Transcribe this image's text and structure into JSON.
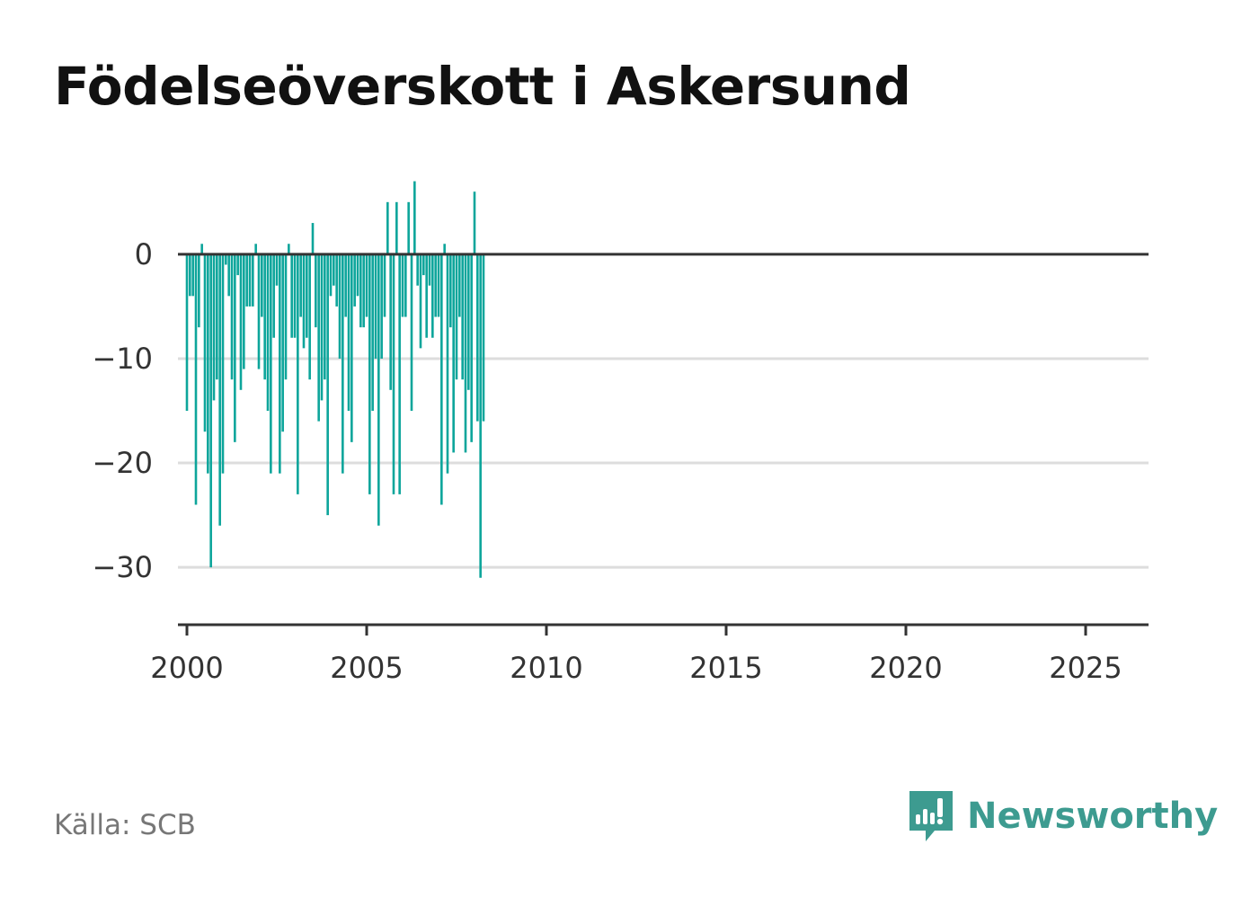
{
  "title": "Födelseöverskott i Askersund",
  "source": "Källa: SCB",
  "brand": {
    "name": "Newsworthy",
    "icon": "newsworthy-logo-icon",
    "color": "#3d9b90"
  },
  "colors": {
    "bar": "#0da59b",
    "zero_line": "#333333",
    "grid": "#dddddd",
    "axis": "#333333"
  },
  "chart_data": {
    "type": "bar",
    "title": "Födelseöverskott i Askersund",
    "xlabel": "",
    "ylabel": "",
    "x_ticks": [
      "2000",
      "2005",
      "2010",
      "2015",
      "2020",
      "2025"
    ],
    "y_ticks": [
      "0",
      "−10",
      "−20",
      "−30"
    ],
    "y_tick_values": [
      0,
      -10,
      -20,
      -30
    ],
    "xlim": [
      1999.75,
      2026.75
    ],
    "ylim": [
      -35.5,
      8
    ],
    "grid": true,
    "legend": "none",
    "values_start_year": 2000,
    "values_per_year": 12,
    "values": [
      -15,
      -4,
      -4,
      -24,
      -7,
      1,
      -17,
      -21,
      -30,
      -14,
      -12,
      -26,
      -21,
      -1,
      -4,
      -12,
      -18,
      -2,
      -13,
      -11,
      -5,
      -5,
      -5,
      1,
      -11,
      -6,
      -12,
      -15,
      -21,
      -8,
      -3,
      -21,
      -17,
      -12,
      1,
      -8,
      -8,
      -23,
      -6,
      -9,
      -8,
      -12,
      3,
      -7,
      -16,
      -14,
      -12,
      -25,
      -4,
      -3,
      -5,
      -10,
      -21,
      -6,
      -15,
      -18,
      -5,
      -4,
      -7,
      -7,
      -6,
      -23,
      -15,
      -10,
      -26,
      -10,
      -6,
      5,
      -13,
      -23,
      5,
      -23,
      -6,
      -6,
      5,
      -15,
      7,
      -3,
      -9,
      -2,
      -8,
      -3,
      -8,
      -6,
      -6,
      -24,
      1,
      -21,
      -7,
      -19,
      -12,
      -6,
      -12,
      -19,
      -13,
      -18,
      6,
      -16,
      -31,
      -16
    ]
  }
}
